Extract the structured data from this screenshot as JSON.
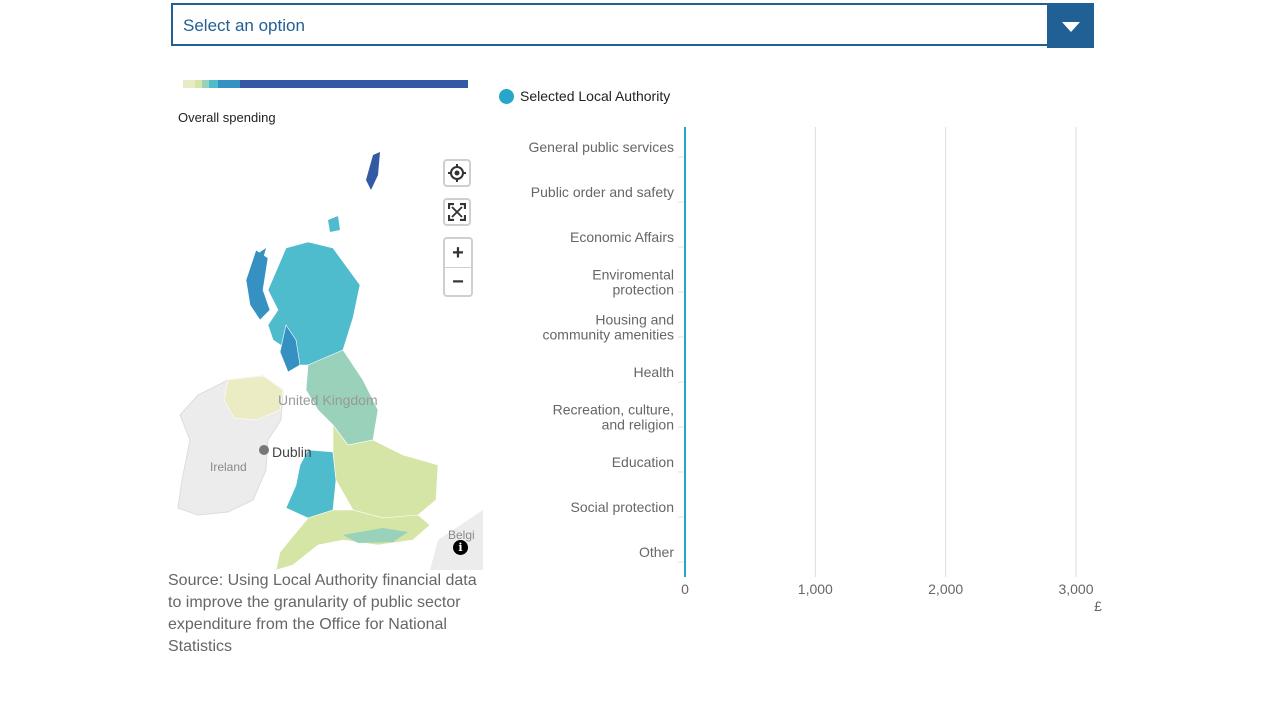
{
  "dropdown": {
    "placeholder": "Select an option"
  },
  "scale": {
    "title": "Overall spending",
    "colors": [
      "#e8ebc5",
      "#d4e5a5",
      "#9ad1ba",
      "#4ebccd",
      "#3591c2",
      "#3459a4"
    ]
  },
  "map": {
    "labels": {
      "uk": "United Kingdom",
      "dublin": "Dublin",
      "ireland": "Ireland",
      "belgium": "Belgi"
    },
    "controls": {
      "locate": "locate-icon",
      "fullscreen": "fullscreen-icon",
      "zoom_in": "+",
      "zoom_out": "−"
    },
    "info": "i"
  },
  "source": "Source: Using Local Authority financial data to improve the granularity of public sector expenditure from the Office for National Statistics",
  "chart_data": {
    "type": "bar",
    "orientation": "horizontal",
    "categories": [
      "General public services",
      "Public order and safety",
      "Economic Affairs",
      "Enviromental protection",
      "Housing and community amenities",
      "Health",
      "Recreation, culture, and religion",
      "Education",
      "Social protection",
      "Other"
    ],
    "category_lines": [
      [
        "General public services"
      ],
      [
        "Public order and safety"
      ],
      [
        "Economic Affairs"
      ],
      [
        "Enviromental",
        "protection"
      ],
      [
        "Housing and",
        "community amenities"
      ],
      [
        "Health"
      ],
      [
        "Recreation, culture,",
        "and religion"
      ],
      [
        "Education"
      ],
      [
        "Social protection"
      ],
      [
        "Other"
      ]
    ],
    "series": [
      {
        "name": "Selected Local Authority",
        "color": "#27a5cb",
        "values": [
          0,
          0,
          0,
          0,
          0,
          0,
          0,
          0,
          0,
          0
        ]
      }
    ],
    "xlim": [
      0,
      3000
    ],
    "xticks": [
      0,
      1000,
      2000,
      3000
    ],
    "xtick_labels": [
      "0",
      "1,000",
      "2,000",
      "3,000"
    ],
    "xlabel": "£",
    "grid": true,
    "legend_position": "top-left"
  }
}
